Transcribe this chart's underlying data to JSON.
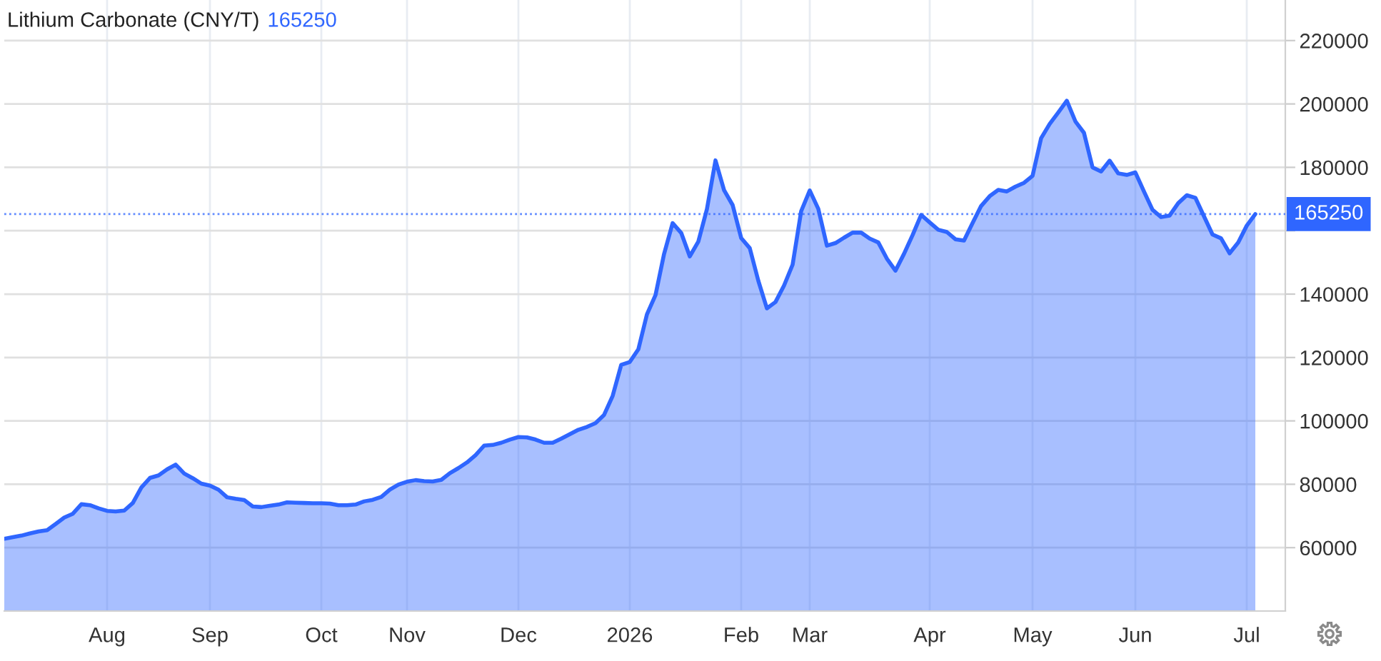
{
  "chart_data": {
    "type": "area",
    "title": "Lithium Carbonate (CNY/T)",
    "subtitle": "165250",
    "categories": [
      null,
      null,
      null,
      null,
      null,
      null,
      null,
      null,
      null,
      null,
      null,
      null,
      "Aug",
      null,
      null,
      null,
      null,
      null,
      null,
      null,
      null,
      null,
      null,
      null,
      "Sep",
      null,
      null,
      null,
      null,
      null,
      null,
      null,
      null,
      null,
      null,
      null,
      null,
      "Oct",
      null,
      null,
      null,
      null,
      null,
      null,
      null,
      null,
      null,
      "Nov",
      null,
      null,
      null,
      null,
      null,
      null,
      null,
      null,
      null,
      null,
      null,
      null,
      "Dec",
      null,
      null,
      null,
      null,
      null,
      null,
      null,
      null,
      null,
      null,
      null,
      null,
      "2026",
      null,
      null,
      null,
      null,
      null,
      null,
      null,
      null,
      null,
      null,
      null,
      null,
      "Feb",
      null,
      null,
      null,
      null,
      null,
      null,
      null,
      "Mar",
      null,
      null,
      null,
      null,
      null,
      null,
      null,
      null,
      null,
      null,
      null,
      null,
      null,
      "Apr",
      null,
      null,
      null,
      null,
      null,
      null,
      null,
      null,
      null,
      null,
      null,
      "May",
      null,
      null,
      null,
      null,
      null,
      null,
      null,
      null,
      null,
      null,
      null,
      "Jun",
      null,
      null,
      null,
      null,
      null,
      null,
      null,
      null,
      null,
      null,
      null,
      null,
      "Jul",
      null
    ],
    "series": [
      {
        "color": "#2f66ff",
        "values": [
          62800,
          63300,
          63800,
          64500,
          65100,
          65500,
          67500,
          69500,
          70700,
          73700,
          73400,
          72400,
          71600,
          71400,
          71700,
          74100,
          79000,
          82000,
          82800,
          84700,
          86200,
          83400,
          81900,
          80200,
          79600,
          78300,
          75900,
          75400,
          75000,
          73000,
          72800,
          73200,
          73600,
          74300,
          74200,
          74100,
          74000,
          74000,
          73900,
          73400,
          73400,
          73600,
          74600,
          75100,
          76000,
          78300,
          79900,
          80800,
          81300,
          81000,
          80900,
          81400,
          83500,
          85100,
          86900,
          89200,
          92200,
          92400,
          93100,
          94100,
          94900,
          94800,
          94100,
          93100,
          93100,
          94400,
          95800,
          97200,
          98100,
          99300,
          101900,
          107900,
          117700,
          118600,
          122600,
          133600,
          139700,
          152700,
          162400,
          159300,
          151900,
          156600,
          166800,
          182200,
          172800,
          168100,
          157700,
          154500,
          144200,
          135500,
          137500,
          142700,
          149300,
          166200,
          172700,
          166900,
          155300,
          156100,
          157800,
          159400,
          159400,
          157500,
          156300,
          151200,
          147400,
          152700,
          158600,
          165000,
          162600,
          160300,
          159600,
          157300,
          156900,
          162400,
          167800,
          170900,
          172900,
          172400,
          173900,
          175100,
          177300,
          189200,
          193700,
          197300,
          201000,
          194500,
          190900,
          180000,
          178700,
          182100,
          178100,
          177600,
          178400,
          172400,
          166600,
          164300,
          164800,
          168700,
          171200,
          170400,
          164600,
          158800,
          157600,
          152900,
          156300,
          161600,
          165250
        ]
      }
    ],
    "ylim": [
      40000,
      232800
    ],
    "yticks": [
      60000,
      80000,
      100000,
      120000,
      140000,
      {
        "value": 160000,
        "label": null
      },
      180000,
      200000,
      220000
    ],
    "grid": true,
    "ref_lines": [
      {
        "axis": "y",
        "value": 165250,
        "label": "165250",
        "color": "#2f66ff",
        "line_style": "dotted"
      }
    ]
  }
}
